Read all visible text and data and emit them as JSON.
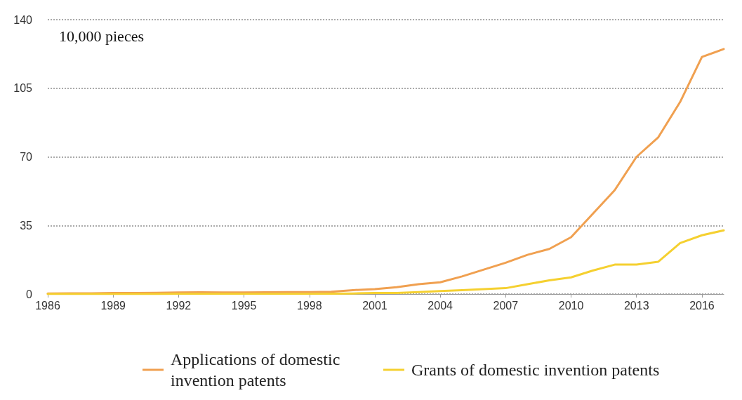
{
  "chart_data": {
    "type": "line",
    "ylabel": "10,000 pieces",
    "x": [
      1986,
      1987,
      1988,
      1989,
      1990,
      1991,
      1992,
      1993,
      1994,
      1995,
      1996,
      1997,
      1998,
      1999,
      2000,
      2001,
      2002,
      2003,
      2004,
      2005,
      2006,
      2007,
      2008,
      2009,
      2010,
      2011,
      2012,
      2013,
      2014,
      2015,
      2016,
      2017
    ],
    "series": [
      {
        "name": "Applications of domestic invention patents",
        "color": "#f0a050",
        "values": [
          0.3,
          0.4,
          0.4,
          0.5,
          0.5,
          0.6,
          0.8,
          0.9,
          0.8,
          0.8,
          0.9,
          1,
          1,
          1.2,
          2,
          2.5,
          3.5,
          5,
          6,
          9,
          12.5,
          16,
          20,
          23,
          29,
          41,
          53,
          70,
          80,
          98,
          121,
          125
        ]
      },
      {
        "name": "Grants of domestic invention patents",
        "color": "#f5d030",
        "values": [
          0,
          0,
          0,
          0,
          0,
          0,
          0.1,
          0.1,
          0.1,
          0.1,
          0.1,
          0.1,
          0.1,
          0.2,
          0.3,
          0.5,
          0.5,
          1,
          1.5,
          2,
          2.5,
          3,
          5,
          7,
          8.5,
          12,
          15,
          15,
          16.5,
          26,
          30,
          32.5
        ]
      }
    ],
    "xlim": [
      1986,
      2017
    ],
    "xticks": [
      1986,
      1989,
      1992,
      1995,
      1998,
      2001,
      2004,
      2007,
      2010,
      2013,
      2016
    ],
    "ylim": [
      0,
      140
    ],
    "yticks": [
      0,
      35,
      70,
      105,
      140
    ],
    "grid": "y",
    "legend": "bottom",
    "marker": "none",
    "line_style": "solid"
  }
}
